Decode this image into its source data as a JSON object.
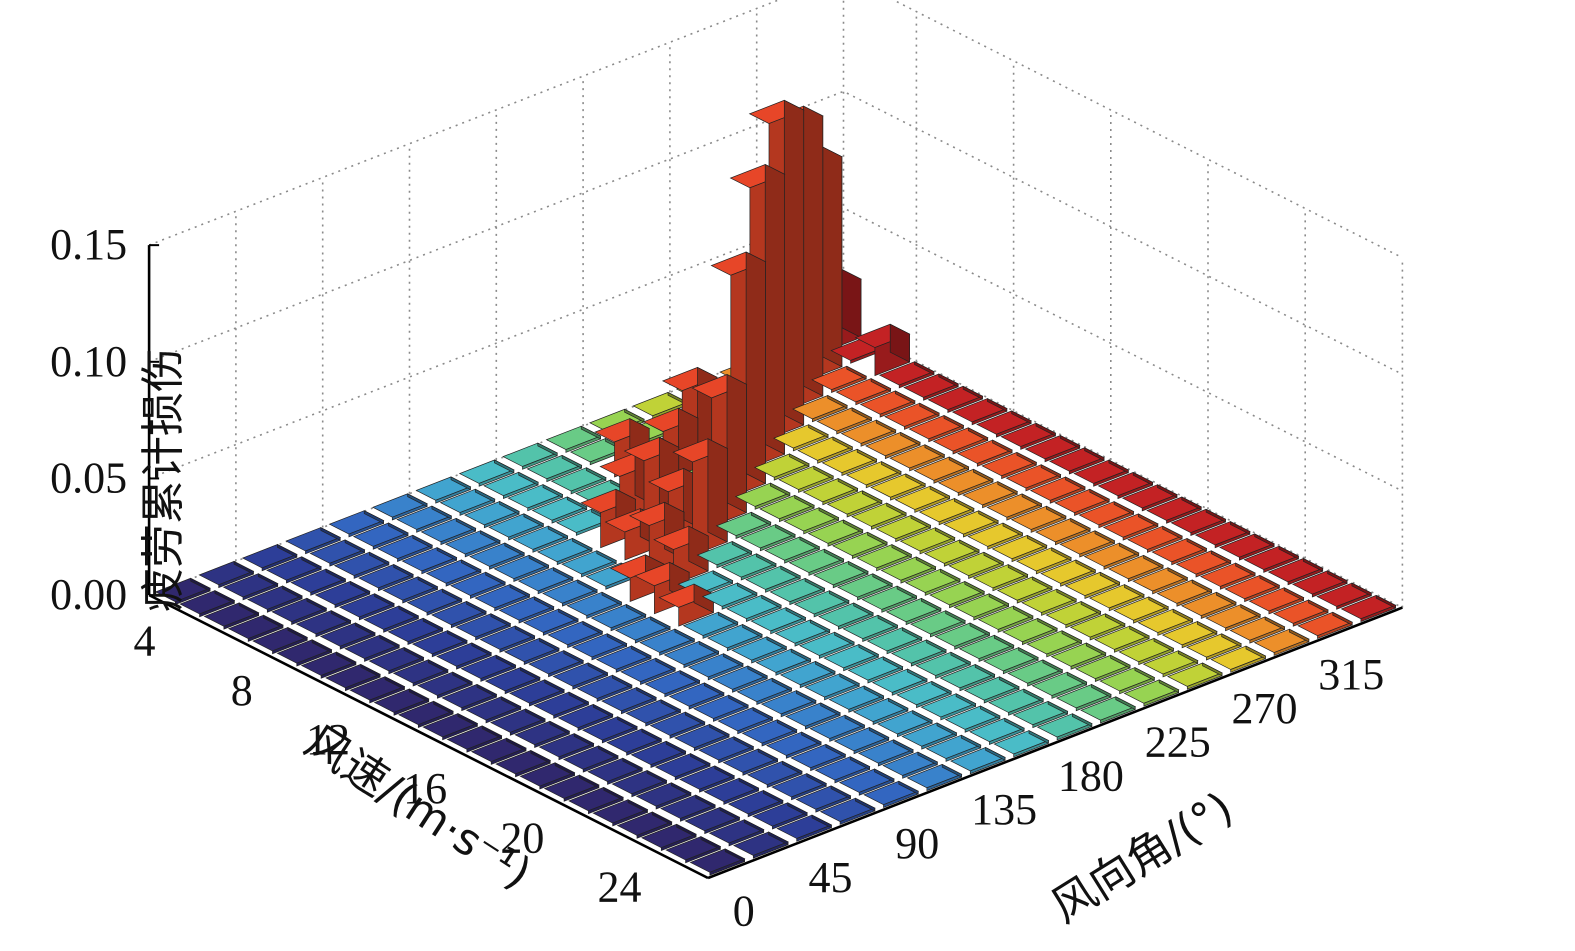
{
  "chart_data": {
    "type": "bar3d",
    "title": "",
    "zlabel": "疲劳累计损伤",
    "xlabel": "风速/(m·s⁻¹)",
    "ylabel": "风向角/(°)",
    "x_ticks": [
      "4",
      "8",
      "12",
      "16",
      "20",
      "24"
    ],
    "y_ticks": [
      "0",
      "45",
      "90",
      "135",
      "180",
      "225",
      "270",
      "315"
    ],
    "z_ticks": [
      "0.00",
      "0.05",
      "0.10",
      "0.15"
    ],
    "zlim": [
      0,
      0.15
    ],
    "wind_speeds": [
      3,
      4,
      5,
      6,
      7,
      8,
      9,
      10,
      11,
      12,
      13,
      14,
      15,
      16,
      17,
      18,
      19,
      20,
      21,
      22,
      23,
      24,
      25
    ],
    "wind_directions": [
      0,
      22.5,
      45,
      67.5,
      90,
      112.5,
      135,
      157.5,
      180,
      202.5,
      225,
      247.5,
      270,
      292.5,
      315,
      337.5
    ],
    "tall_bars": [
      {
        "speed": 3,
        "direction": 337.5,
        "value": 0.025
      },
      {
        "speed": 4,
        "direction": 315,
        "value": 0.09
      },
      {
        "speed": 5,
        "direction": 292.5,
        "value": 0.12
      },
      {
        "speed": 6,
        "direction": 270,
        "value": 0.135
      },
      {
        "speed": 7,
        "direction": 247.5,
        "value": 0.12
      },
      {
        "speed": 8,
        "direction": 225,
        "value": 0.095
      },
      {
        "speed": 9,
        "direction": 202.5,
        "value": 0.055
      },
      {
        "speed": 10,
        "direction": 180,
        "value": 0.04
      },
      {
        "speed": 5,
        "direction": 337.5,
        "value": 0.012
      },
      {
        "speed": 5,
        "direction": 202.5,
        "value": 0.015
      },
      {
        "speed": 6,
        "direction": 225,
        "value": 0.035
      },
      {
        "speed": 7,
        "direction": 202.5,
        "value": 0.03
      },
      {
        "speed": 7,
        "direction": 180,
        "value": 0.018
      },
      {
        "speed": 8,
        "direction": 180,
        "value": 0.03
      },
      {
        "speed": 8,
        "direction": 157.5,
        "value": 0.015
      },
      {
        "speed": 9,
        "direction": 180,
        "value": 0.022
      },
      {
        "speed": 9,
        "direction": 157.5,
        "value": 0.012
      },
      {
        "speed": 10,
        "direction": 157.5,
        "value": 0.02
      },
      {
        "speed": 11,
        "direction": 157.5,
        "value": 0.015
      },
      {
        "speed": 11,
        "direction": 135,
        "value": 0.01
      },
      {
        "speed": 12,
        "direction": 135,
        "value": 0.012
      },
      {
        "speed": 13,
        "direction": 135,
        "value": 0.008
      }
    ],
    "colormap": "jet",
    "grid": true
  }
}
